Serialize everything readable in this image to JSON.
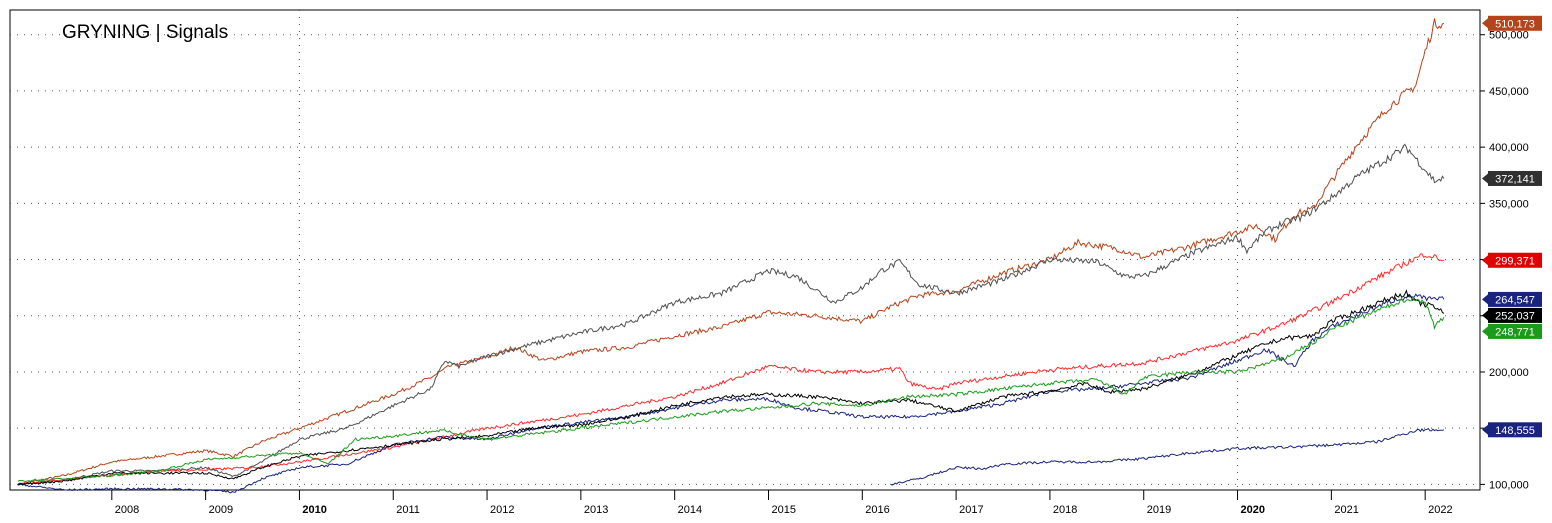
{
  "chart_data": {
    "type": "line",
    "title": "GRYNING | Signals",
    "xlabel": "",
    "ylabel": "",
    "xlim": [
      2007.0,
      2022.35
    ],
    "ylim": [
      95000,
      522000
    ],
    "grid": true,
    "x_ticks": [
      {
        "label": "2008",
        "x": 2008.0,
        "bold": false
      },
      {
        "label": "2009",
        "x": 2009.0,
        "bold": false
      },
      {
        "label": "2010",
        "x": 2010.0,
        "bold": true
      },
      {
        "label": "2011",
        "x": 2011.0,
        "bold": false
      },
      {
        "label": "2012",
        "x": 2012.0,
        "bold": false
      },
      {
        "label": "2013",
        "x": 2013.0,
        "bold": false
      },
      {
        "label": "2014",
        "x": 2014.0,
        "bold": false
      },
      {
        "label": "2015",
        "x": 2015.0,
        "bold": false
      },
      {
        "label": "2016",
        "x": 2016.0,
        "bold": false
      },
      {
        "label": "2017",
        "x": 2017.0,
        "bold": false
      },
      {
        "label": "2018",
        "x": 2018.0,
        "bold": false
      },
      {
        "label": "2019",
        "x": 2019.0,
        "bold": false
      },
      {
        "label": "2020",
        "x": 2020.0,
        "bold": true
      },
      {
        "label": "2021",
        "x": 2021.0,
        "bold": false
      },
      {
        "label": "2022",
        "x": 2022.0,
        "bold": false
      }
    ],
    "y_ticks": [
      {
        "label": "100,000",
        "value": 100000
      },
      {
        "label": "150,000",
        "value": 150000
      },
      {
        "label": "200,000",
        "value": 200000
      },
      {
        "label": "250,000",
        "value": 250000
      },
      {
        "label": "300,000",
        "value": 300000
      },
      {
        "label": "350,000",
        "value": 350000
      },
      {
        "label": "400,000",
        "value": 400000
      },
      {
        "label": "450,000",
        "value": 450000
      },
      {
        "label": "500,000",
        "value": 500000
      }
    ],
    "series": [
      {
        "color": "#b5441a",
        "last_label": "510,173",
        "label_bg": "#b5441a",
        "last": 510173,
        "x": [
          2007.0,
          2007.5,
          2008.0,
          2008.5,
          2009.0,
          2009.3,
          2009.6,
          2010.0,
          2010.5,
          2011.0,
          2011.4,
          2011.6,
          2012.0,
          2012.3,
          2012.6,
          2013.0,
          2013.5,
          2014.0,
          2014.5,
          2015.0,
          2015.5,
          2016.0,
          2016.3,
          2016.6,
          2017.0,
          2017.5,
          2018.0,
          2018.3,
          2018.7,
          2019.0,
          2019.5,
          2020.0,
          2020.2,
          2020.4,
          2020.6,
          2020.8,
          2021.0,
          2021.3,
          2021.6,
          2021.9,
          2022.0,
          2022.1,
          2022.2
        ],
        "y": [
          100000,
          108000,
          120000,
          125000,
          130000,
          125000,
          138000,
          150000,
          165000,
          180000,
          195000,
          205000,
          213000,
          222000,
          210000,
          218000,
          222000,
          232000,
          240000,
          253000,
          250000,
          245000,
          258000,
          268000,
          272000,
          288000,
          300000,
          315000,
          310000,
          302000,
          312000,
          325000,
          330000,
          318000,
          340000,
          345000,
          370000,
          405000,
          435000,
          455000,
          485000,
          510000,
          510173
        ]
      },
      {
        "color": "#505050",
        "last_label": "372,141",
        "label_bg": "#303030",
        "last": 372141,
        "x": [
          2007.0,
          2007.5,
          2008.0,
          2008.5,
          2009.0,
          2009.3,
          2009.6,
          2010.0,
          2010.5,
          2011.0,
          2011.4,
          2011.55,
          2011.7,
          2012.0,
          2012.5,
          2013.0,
          2013.5,
          2014.0,
          2014.5,
          2015.0,
          2015.3,
          2015.7,
          2016.0,
          2016.2,
          2016.4,
          2016.6,
          2017.0,
          2017.5,
          2018.0,
          2018.5,
          2018.8,
          2019.0,
          2019.5,
          2020.0,
          2020.1,
          2020.3,
          2020.5,
          2020.7,
          2021.0,
          2021.3,
          2021.6,
          2021.8,
          2022.0,
          2022.1,
          2022.2
        ],
        "y": [
          100000,
          104000,
          112000,
          112000,
          115000,
          107000,
          120000,
          140000,
          150000,
          170000,
          185000,
          210000,
          205000,
          214000,
          225000,
          235000,
          243000,
          262000,
          270000,
          290000,
          285000,
          262000,
          275000,
          290000,
          298000,
          278000,
          270000,
          282000,
          300000,
          298000,
          285000,
          285000,
          305000,
          320000,
          308000,
          325000,
          333000,
          338000,
          355000,
          375000,
          390000,
          400000,
          380000,
          370000,
          372141
        ]
      },
      {
        "color": "#ff2a2a",
        "last_label": "299,371",
        "label_bg": "#e00000",
        "last": 299371,
        "x": [
          2007.0,
          2008.0,
          2008.5,
          2009.0,
          2009.5,
          2010.0,
          2011.0,
          2012.0,
          2013.0,
          2014.0,
          2014.5,
          2015.0,
          2015.5,
          2016.0,
          2016.4,
          2016.5,
          2016.8,
          2017.0,
          2018.0,
          2019.0,
          2020.0,
          2020.5,
          2021.0,
          2021.4,
          2021.7,
          2022.0,
          2022.2
        ],
        "y": [
          100000,
          108000,
          112000,
          113000,
          115000,
          120000,
          133000,
          150000,
          162000,
          178000,
          190000,
          205000,
          200000,
          200000,
          203000,
          190000,
          184000,
          190000,
          202000,
          208000,
          228000,
          243000,
          262000,
          280000,
          293000,
          305000,
          299371
        ]
      },
      {
        "color": "#1a237e",
        "last_label": "264,547",
        "label_bg": "#1a237e",
        "last": 264547,
        "x": [
          2007.0,
          2007.5,
          2008.0,
          2008.5,
          2009.0,
          2009.3,
          2009.6,
          2010.0,
          2010.5,
          2011.0,
          2011.5,
          2012.0,
          2012.5,
          2013.0,
          2013.5,
          2014.0,
          2014.5,
          2015.0,
          2015.3,
          2015.6,
          2016.0,
          2016.5,
          2017.0,
          2017.5,
          2018.0,
          2018.5,
          2019.0,
          2019.5,
          2020.0,
          2020.3,
          2020.6,
          2020.8,
          2021.0,
          2021.4,
          2021.7,
          2021.9,
          2022.0,
          2022.2
        ],
        "y": [
          100000,
          95000,
          96000,
          96000,
          95000,
          93000,
          105000,
          115000,
          118000,
          135000,
          142000,
          140000,
          150000,
          155000,
          160000,
          168000,
          175000,
          176000,
          168000,
          165000,
          160000,
          160000,
          165000,
          172000,
          183000,
          185000,
          190000,
          195000,
          210000,
          220000,
          205000,
          228000,
          240000,
          255000,
          265000,
          268000,
          265000,
          264547
        ]
      },
      {
        "color": "#000000",
        "last_label": "252,037",
        "label_bg": "#000000",
        "last": 252037,
        "x": [
          2007.0,
          2007.5,
          2008.0,
          2008.5,
          2009.0,
          2009.3,
          2009.6,
          2010.0,
          2010.5,
          2011.0,
          2011.5,
          2012.0,
          2012.5,
          2013.0,
          2013.5,
          2014.0,
          2014.5,
          2015.0,
          2015.5,
          2016.0,
          2016.5,
          2017.0,
          2017.5,
          2018.0,
          2018.4,
          2018.6,
          2019.0,
          2019.5,
          2020.0,
          2020.3,
          2020.5,
          2020.8,
          2021.0,
          2021.4,
          2021.7,
          2021.8,
          2021.9,
          2022.0,
          2022.1,
          2022.2
        ],
        "y": [
          100000,
          103000,
          110000,
          110000,
          110000,
          105000,
          115000,
          125000,
          130000,
          135000,
          140000,
          143000,
          150000,
          153000,
          160000,
          170000,
          178000,
          180000,
          178000,
          172000,
          175000,
          165000,
          178000,
          183000,
          190000,
          182000,
          185000,
          198000,
          215000,
          225000,
          230000,
          232000,
          245000,
          258000,
          268000,
          270000,
          262000,
          260000,
          258000,
          252037
        ]
      },
      {
        "color": "#1a9c1a",
        "last_label": "248,771",
        "label_bg": "#1a9c1a",
        "last": 248771,
        "x": [
          2007.0,
          2007.5,
          2008.0,
          2008.5,
          2009.0,
          2009.5,
          2010.0,
          2010.3,
          2010.6,
          2011.0,
          2011.5,
          2012.0,
          2012.5,
          2013.0,
          2013.5,
          2014.0,
          2014.5,
          2015.0,
          2015.5,
          2016.0,
          2016.5,
          2017.0,
          2017.5,
          2018.0,
          2018.5,
          2018.8,
          2019.0,
          2019.5,
          2020.0,
          2020.5,
          2020.7,
          2020.9,
          2021.0,
          2021.5,
          2021.8,
          2022.0,
          2022.1,
          2022.15,
          2022.2
        ],
        "y": [
          103000,
          105000,
          108000,
          112000,
          122000,
          125000,
          128000,
          118000,
          140000,
          143000,
          148000,
          140000,
          145000,
          150000,
          155000,
          160000,
          165000,
          168000,
          172000,
          170000,
          178000,
          180000,
          185000,
          190000,
          193000,
          180000,
          195000,
          200000,
          200000,
          212000,
          222000,
          230000,
          238000,
          255000,
          265000,
          263000,
          240000,
          245000,
          248771
        ]
      },
      {
        "color": "#1a237e",
        "last_label": "148,555",
        "label_bg": "#1a237e",
        "last": 148555,
        "x": [
          2016.3,
          2016.6,
          2017.0,
          2017.3,
          2017.5,
          2018.0,
          2018.5,
          2019.0,
          2019.5,
          2020.0,
          2020.5,
          2021.0,
          2021.5,
          2021.7,
          2021.9,
          2022.0,
          2022.2
        ],
        "y": [
          100000,
          105000,
          115000,
          114000,
          118000,
          120000,
          120000,
          123000,
          128000,
          132000,
          133000,
          135000,
          138000,
          143000,
          148000,
          148555,
          148555
        ]
      }
    ]
  }
}
